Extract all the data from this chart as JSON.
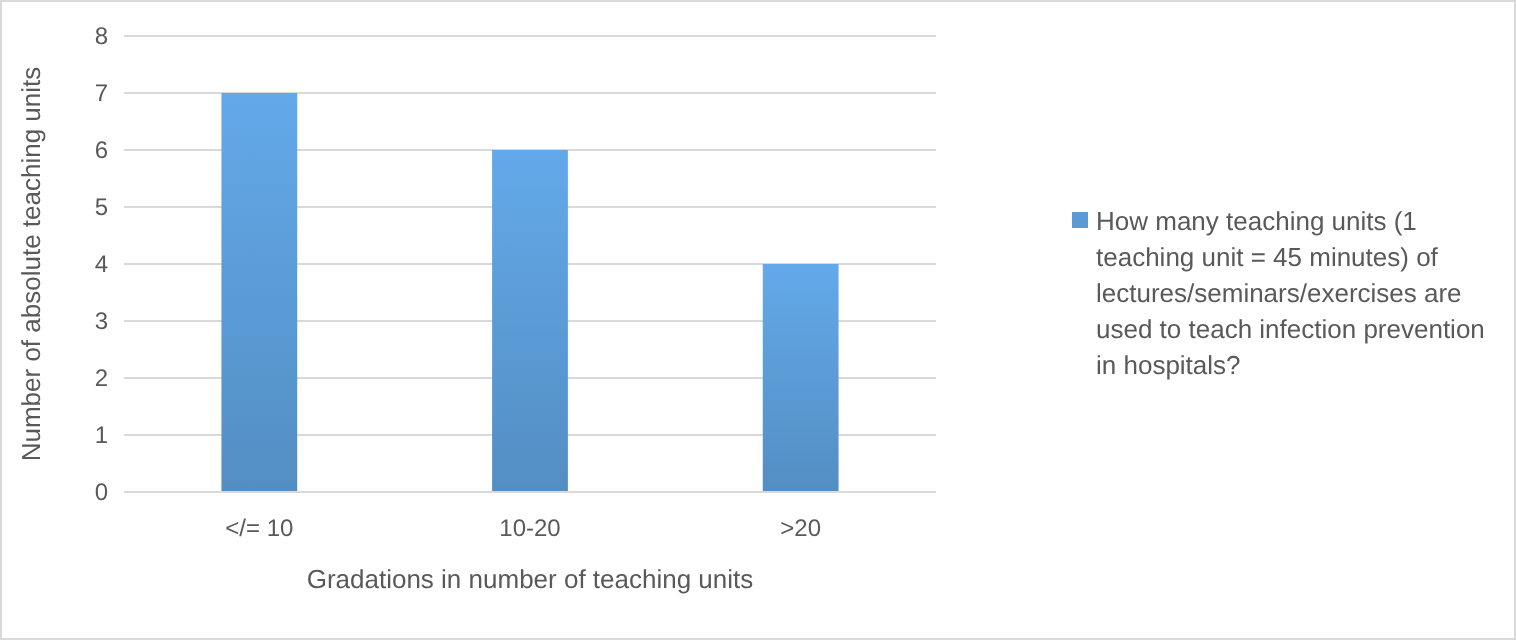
{
  "chart_data": {
    "type": "bar",
    "xlabel": "Gradations in number of teaching units",
    "ylabel": "Number of absolute teaching units",
    "categories": [
      "</= 10",
      "10-20",
      ">20"
    ],
    "series": [
      {
        "name": "How many teaching units (1 teaching unit = 45 minutes) of lectures/seminars/exercises are used to teach infection prevention in hospitals?",
        "color": "#5b9bd5",
        "values": [
          7,
          6,
          4
        ]
      }
    ],
    "ylim": [
      0,
      8
    ],
    "yticks": [
      0,
      1,
      2,
      3,
      4,
      5,
      6,
      7,
      8
    ],
    "grid": "y",
    "legend": "right"
  }
}
